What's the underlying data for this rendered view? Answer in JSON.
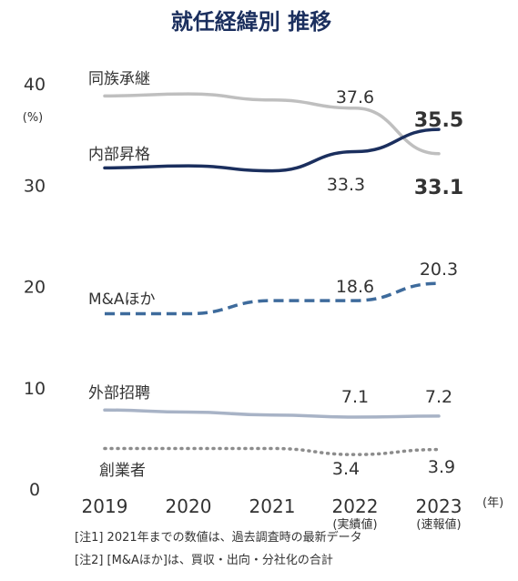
{
  "chart_data": {
    "type": "line",
    "title": "就任経緯別 推移",
    "ylabel": "(%)",
    "x_unit": "(年)",
    "ylim": [
      0,
      40
    ],
    "yticks": [
      "0",
      "10",
      "20",
      "30",
      "40"
    ],
    "categories": [
      "2019",
      "2020",
      "2021",
      "2022",
      "2023"
    ],
    "category_sublabels": [
      "",
      "",
      "",
      "(実績値)",
      "(速報値)"
    ],
    "series": [
      {
        "name": "同族承継",
        "values": [
          38.8,
          39.0,
          38.4,
          37.6,
          33.1
        ],
        "color": "#bfbfbf",
        "style": "solid",
        "labels": [
          {
            "i": 3,
            "text": "37.6"
          },
          {
            "i": 4,
            "text": "33.1"
          }
        ]
      },
      {
        "name": "内部昇格",
        "values": [
          31.7,
          31.9,
          31.4,
          33.3,
          35.5
        ],
        "color": "#1b2f5e",
        "style": "solid",
        "labels": [
          {
            "i": 3,
            "text": "33.3"
          },
          {
            "i": 4,
            "text": "35.5"
          }
        ]
      },
      {
        "name": "M&Aほか",
        "values": [
          17.3,
          17.3,
          18.6,
          18.6,
          20.3
        ],
        "color": "#3e6b9c",
        "style": "dashed",
        "labels": [
          {
            "i": 3,
            "text": "18.6"
          },
          {
            "i": 4,
            "text": "20.3"
          }
        ]
      },
      {
        "name": "外部招聘",
        "values": [
          7.8,
          7.6,
          7.3,
          7.1,
          7.2
        ],
        "color": "#a8b3c6",
        "style": "solid",
        "labels": [
          {
            "i": 3,
            "text": "7.1"
          },
          {
            "i": 4,
            "text": "7.2"
          }
        ]
      },
      {
        "name": "創業者",
        "values": [
          4.0,
          4.0,
          4.0,
          3.4,
          3.9
        ],
        "color": "#8c8c8c",
        "style": "dotted",
        "labels": [
          {
            "i": 3,
            "text": "3.4"
          },
          {
            "i": 4,
            "text": "3.9"
          }
        ]
      }
    ],
    "grid": false,
    "legend": "inline labels"
  },
  "notes": [
    "[注1] 2021年までの数値は、過去調査時の最新データ",
    "[注2] [M&Aほか]は、買収・出向・分社化の合計"
  ],
  "colors": {
    "title": "#1b2f5e",
    "text": "#333333"
  }
}
